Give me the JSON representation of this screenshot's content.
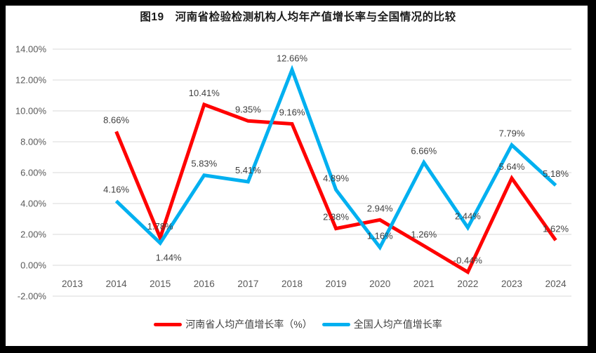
{
  "title": "图19　河南省检验检测机构人均年产值增长率与全国情况的比较",
  "colors": {
    "henan_line": "#FF0000",
    "national_line": "#00B0F0",
    "gridline": "#D9D9D9",
    "tick_text": "#595959",
    "data_label_text": "#404040",
    "frame": "#000000",
    "background": "#FFFFFF"
  },
  "chart_data": {
    "type": "line",
    "title": "图19　河南省检验检测机构人均年产值增长率与全国情况的比较",
    "x": [
      "2013",
      "2014",
      "2015",
      "2016",
      "2017",
      "2018",
      "2019",
      "2020",
      "2021",
      "2022",
      "2023",
      "2024"
    ],
    "series": [
      {
        "name": "河南省人均产值增长率（%）",
        "color": "#FF0000",
        "values": [
          null,
          8.66,
          1.78,
          10.41,
          9.35,
          9.16,
          2.38,
          2.94,
          1.26,
          -0.44,
          5.64,
          1.62
        ]
      },
      {
        "name": "全国人均产值增长率",
        "color": "#00B0F0",
        "values": [
          null,
          4.16,
          1.44,
          5.83,
          5.41,
          12.66,
          4.89,
          1.16,
          6.66,
          2.44,
          7.79,
          5.18
        ]
      }
    ],
    "xlabel": "",
    "ylabel": "",
    "ylim": [
      -2,
      14
    ],
    "ytick_step": 2,
    "ytick_labels": [
      "-2.00%",
      "0.00%",
      "2.00%",
      "4.00%",
      "6.00%",
      "8.00%",
      "10.00%",
      "12.00%",
      "14.00%"
    ],
    "grid": true,
    "data_labels": true,
    "data_label_format": "0.00%",
    "legend_position": "bottom"
  }
}
